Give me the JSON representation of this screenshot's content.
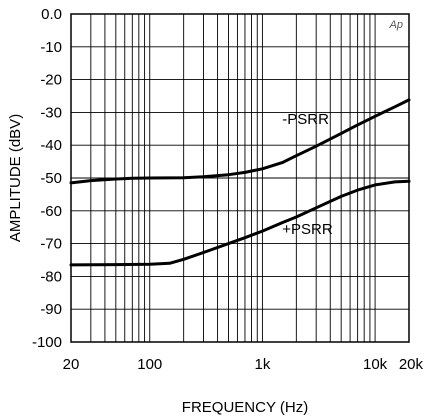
{
  "chart_data": {
    "type": "line",
    "xlabel": "FREQUENCY (Hz)",
    "ylabel": "AMPLITUDE (dBV)",
    "x_scale": "log",
    "xlim": [
      20,
      20000
    ],
    "ylim": [
      -100,
      0
    ],
    "grid": true,
    "corner_mark": "Ap",
    "x_ticks": [
      {
        "value": 20,
        "label": "20"
      },
      {
        "value": 100,
        "label": "100"
      },
      {
        "value": 1000,
        "label": "1k"
      },
      {
        "value": 10000,
        "label": "10k"
      },
      {
        "value": 20000,
        "label": "20k"
      }
    ],
    "y_ticks": [
      {
        "value": 0,
        "label": "0.0"
      },
      {
        "value": -10,
        "label": "-10"
      },
      {
        "value": -20,
        "label": "-20"
      },
      {
        "value": -30,
        "label": "-30"
      },
      {
        "value": -40,
        "label": "-40"
      },
      {
        "value": -50,
        "label": "-50"
      },
      {
        "value": -60,
        "label": "-60"
      },
      {
        "value": -70,
        "label": "-70"
      },
      {
        "value": -80,
        "label": "-80"
      },
      {
        "value": -90,
        "label": "-90"
      },
      {
        "value": -100,
        "label": "-100"
      }
    ],
    "series": [
      {
        "name": "-PSRR",
        "x": [
          20,
          30,
          50,
          70,
          100,
          200,
          300,
          500,
          700,
          1000,
          1500,
          2000,
          3000,
          5000,
          7000,
          10000,
          15000,
          20000
        ],
        "values": [
          -51.5,
          -50.8,
          -50.3,
          -50.1,
          -50.0,
          -49.9,
          -49.6,
          -49.0,
          -48.3,
          -47.2,
          -45.3,
          -43.2,
          -40.3,
          -36.4,
          -33.8,
          -31.2,
          -28.3,
          -26.2
        ]
      },
      {
        "name": "+PSRR",
        "x": [
          20,
          50,
          100,
          150,
          200,
          300,
          500,
          700,
          1000,
          1500,
          2000,
          3000,
          5000,
          7000,
          10000,
          15000,
          20000
        ],
        "values": [
          -76.5,
          -76.4,
          -76.3,
          -76.0,
          -74.8,
          -72.7,
          -70.0,
          -68.2,
          -66.2,
          -63.6,
          -61.9,
          -59.1,
          -55.6,
          -53.7,
          -52.1,
          -51.2,
          -51.0
        ]
      }
    ]
  }
}
